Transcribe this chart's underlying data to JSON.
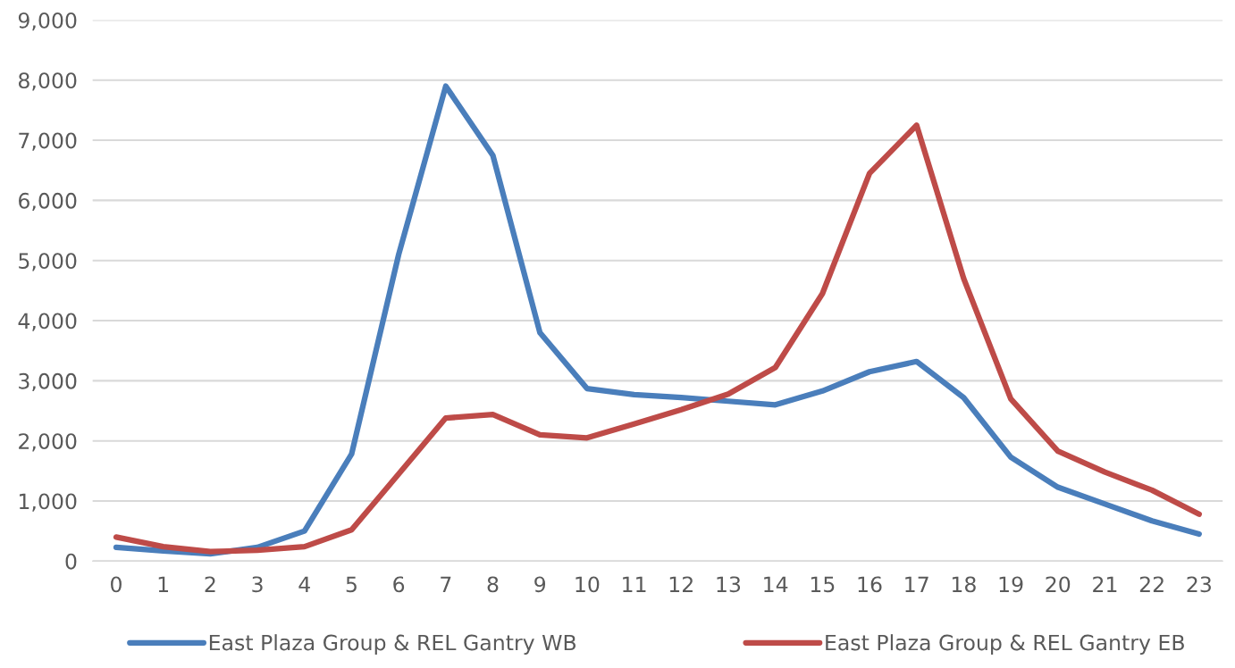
{
  "chart_data": {
    "type": "line",
    "categories": [
      "0",
      "1",
      "2",
      "3",
      "4",
      "5",
      "6",
      "7",
      "8",
      "9",
      "10",
      "11",
      "12",
      "13",
      "14",
      "15",
      "16",
      "17",
      "18",
      "19",
      "20",
      "21",
      "22",
      "23"
    ],
    "series": [
      {
        "name": "East Plaza Group & REL Gantry WB",
        "color": "#4a7ebb",
        "values": [
          230,
          170,
          120,
          230,
          500,
          1780,
          5100,
          7900,
          6750,
          3800,
          2870,
          2770,
          2720,
          2660,
          2600,
          2830,
          3150,
          3320,
          2720,
          1730,
          1230,
          950,
          670,
          450
        ]
      },
      {
        "name": "East Plaza Group & REL Gantry EB",
        "color": "#be4b48",
        "values": [
          400,
          240,
          160,
          180,
          240,
          520,
          1450,
          2380,
          2440,
          2100,
          2050,
          2280,
          2520,
          2780,
          3220,
          4450,
          6450,
          7250,
          4700,
          2700,
          1830,
          1480,
          1180,
          780
        ]
      }
    ],
    "ylim": [
      0,
      9000
    ],
    "yticks": [
      {
        "value": 0,
        "label": "0"
      },
      {
        "value": 1000,
        "label": "1,000"
      },
      {
        "value": 2000,
        "label": "2,000"
      },
      {
        "value": 3000,
        "label": "3,000"
      },
      {
        "value": 4000,
        "label": "4,000"
      },
      {
        "value": 5000,
        "label": "5,000"
      },
      {
        "value": 6000,
        "label": "6,000"
      },
      {
        "value": 7000,
        "label": "7,000"
      },
      {
        "value": 8000,
        "label": "8,000"
      },
      {
        "value": 9000,
        "label": "9,000"
      }
    ],
    "grid": "y",
    "legend": "bottom",
    "marker": "none",
    "line_style": "solid"
  }
}
